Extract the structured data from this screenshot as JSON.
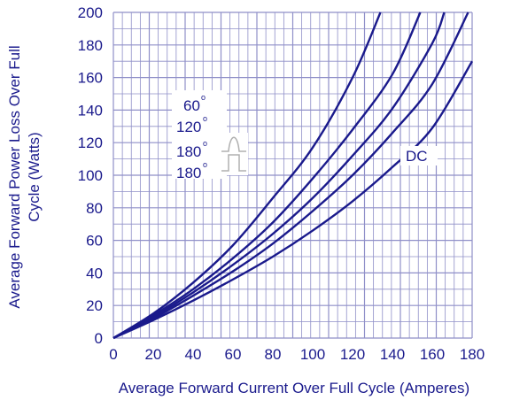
{
  "chart_data": {
    "type": "line",
    "xlabel": "Average Forward Current Over Full Cycle (Amperes)",
    "ylabel_line1": "Average Forward Power Loss Over Full",
    "ylabel_line2": "Cycle (Watts)",
    "xlim": [
      0,
      180
    ],
    "ylim": [
      0,
      200
    ],
    "x_ticks": [
      0,
      20,
      40,
      60,
      80,
      100,
      120,
      140,
      160,
      180
    ],
    "y_ticks": [
      0,
      20,
      40,
      60,
      80,
      100,
      120,
      140,
      160,
      180,
      200
    ],
    "grid": true,
    "series": [
      {
        "name": "60",
        "x": [
          0,
          20,
          40,
          60,
          80,
          100,
          120,
          134
        ],
        "y": [
          0,
          15,
          34,
          57,
          86,
          117,
          160,
          200
        ]
      },
      {
        "name": "120",
        "x": [
          0,
          20,
          40,
          60,
          80,
          100,
          120,
          140,
          154
        ],
        "y": [
          0,
          14,
          30,
          49,
          71,
          98,
          128,
          162,
          200
        ]
      },
      {
        "name": "180",
        "x": [
          0,
          20,
          40,
          60,
          80,
          100,
          120,
          140,
          160,
          166
        ],
        "y": [
          0,
          13,
          28,
          45,
          64,
          86,
          112,
          141,
          181,
          200
        ]
      },
      {
        "name": "180",
        "x": [
          0,
          20,
          40,
          60,
          80,
          100,
          120,
          140,
          160,
          178
        ],
        "y": [
          0,
          12,
          26,
          41,
          58,
          78,
          100,
          126,
          156,
          200
        ]
      },
      {
        "name": "DC",
        "x": [
          0,
          20,
          40,
          60,
          80,
          100,
          120,
          140,
          160,
          180
        ],
        "y": [
          0,
          11,
          23,
          36,
          50,
          66,
          84,
          105,
          129,
          170
        ]
      }
    ],
    "annotations": {
      "lbl_60": "60",
      "lbl_120": "120",
      "lbl_180a": "180",
      "lbl_180b": "180",
      "deg": "o",
      "dc": "DC"
    },
    "colors": {
      "curve": "#1a1a8c",
      "grid": "#8f8fc8",
      "text": "#1a1a8c"
    }
  }
}
